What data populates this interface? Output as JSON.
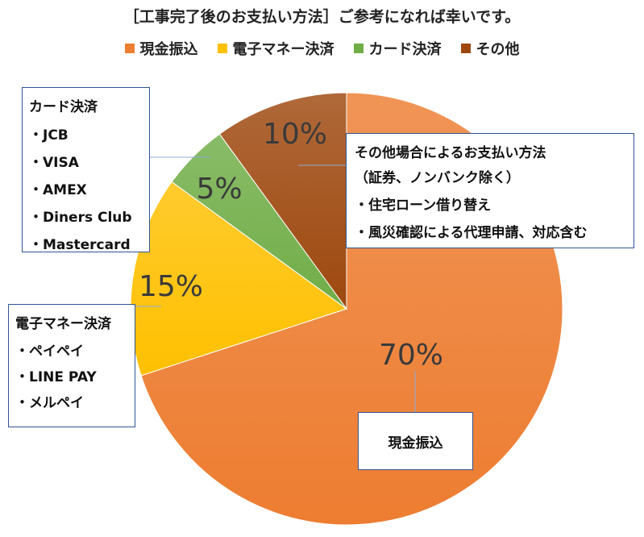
{
  "title": "［工事完了後のお支払い方法］ご参考になれば幸いです。",
  "chart_data": {
    "type": "pie",
    "categories": [
      "現金振込",
      "電子マネー決済",
      "カード決済",
      "その他"
    ],
    "values": [
      70,
      15,
      5,
      10
    ],
    "data_labels": [
      "70%",
      "15%",
      "5%",
      "10%"
    ],
    "colors": [
      "#ed7d31",
      "#ffc000",
      "#70ad47",
      "#9e480e"
    ],
    "legend_position": "top"
  },
  "callouts": {
    "card": {
      "heading": "カード決済",
      "items": [
        "JCB",
        "VISA",
        "AMEX",
        "Diners Club",
        "Mastercard"
      ]
    },
    "emoney": {
      "heading": "電子マネー決済",
      "items": [
        "ペイペイ",
        "LINE PAY",
        "メルペイ"
      ]
    },
    "other": {
      "heading": "その他場合によるお支払い方法",
      "sub": "（証券、ノンバンク除く）",
      "items": [
        "住宅ローン借り替え",
        "風災確認による代理申請、対応含む"
      ]
    },
    "cash": {
      "label": "現金振込"
    }
  }
}
